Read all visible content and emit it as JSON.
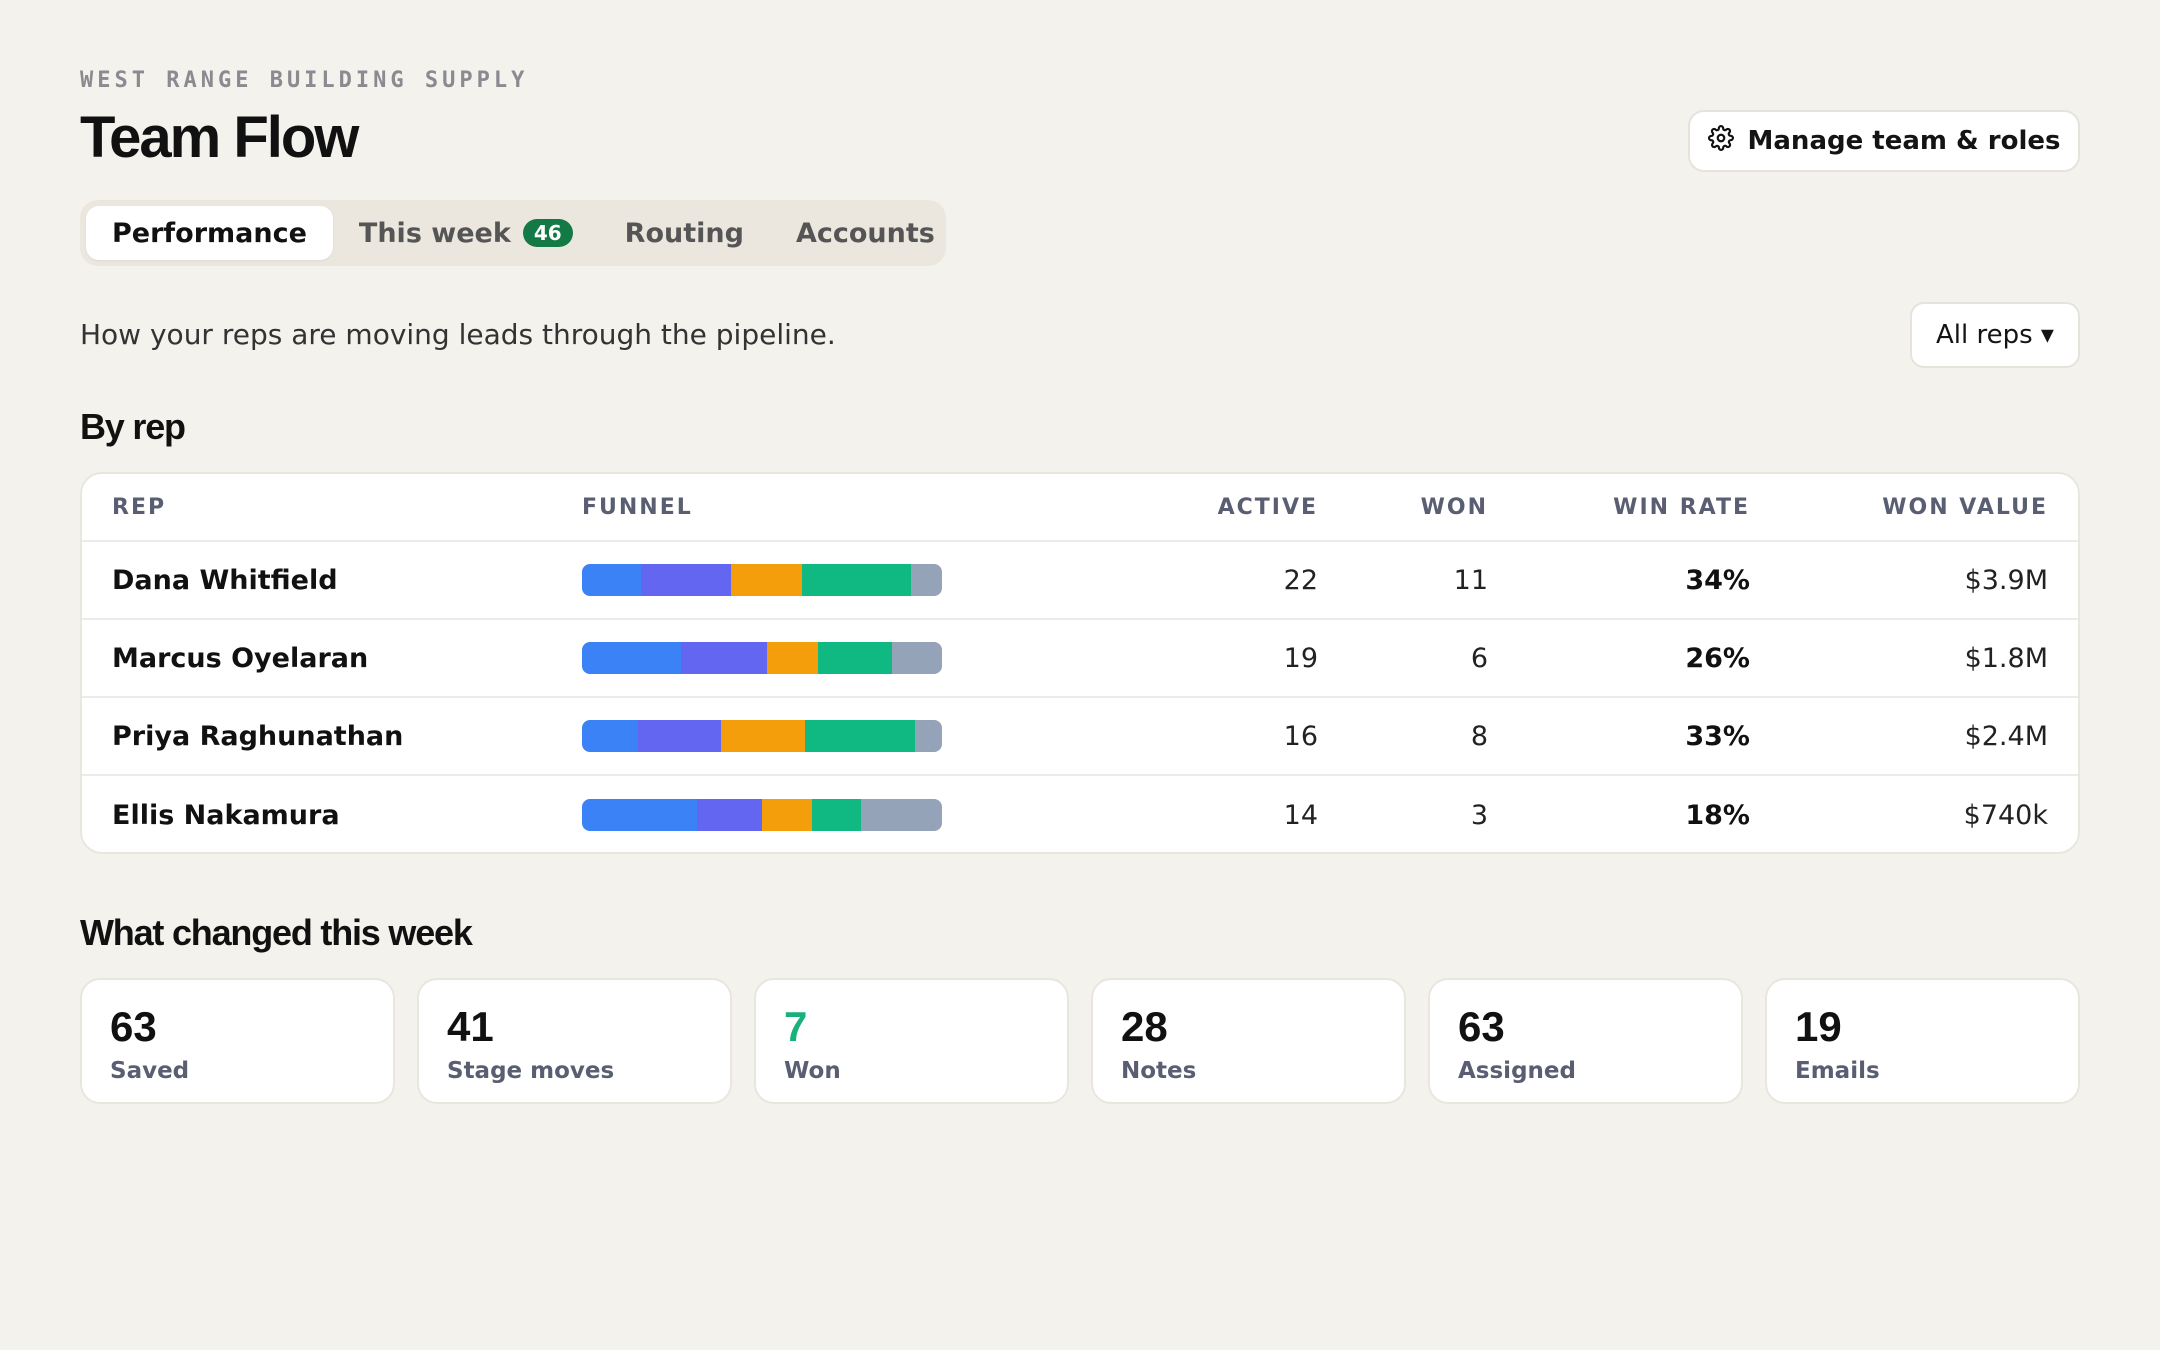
{
  "header": {
    "org_name": "WEST RANGE BUILDING SUPPLY",
    "title": "Team Flow",
    "manage_button": "Manage team & roles"
  },
  "tabs": [
    {
      "label": "Performance",
      "active": true
    },
    {
      "label": "This week",
      "badge": "46"
    },
    {
      "label": "Routing"
    },
    {
      "label": "Accounts"
    }
  ],
  "subtitle": "How your reps are moving leads through the pipeline.",
  "filter": {
    "selected": "All reps ▾"
  },
  "by_rep": {
    "heading": "By rep",
    "columns": {
      "rep": "REP",
      "funnel": "FUNNEL",
      "active": "ACTIVE",
      "won": "WON",
      "win_rate": "WIN RATE",
      "won_value": "WON VALUE"
    },
    "funnel_colors": [
      "#3b82f6",
      "#6366f1",
      "#f59e0b",
      "#10b981",
      "#94a3b8"
    ],
    "rows": [
      {
        "rep": "Dana Whitfield",
        "funnel": [
          0.165,
          0.25,
          0.195,
          0.305,
          0.085
        ],
        "active": "22",
        "won": "11",
        "win_rate": "34%",
        "won_value": "$3.9M"
      },
      {
        "rep": "Marcus Oyelaran",
        "funnel": [
          0.275,
          0.24,
          0.14,
          0.205,
          0.14
        ],
        "active": "19",
        "won": "6",
        "win_rate": "26%",
        "won_value": "$1.8M"
      },
      {
        "rep": "Priya Raghunathan",
        "funnel": [
          0.155,
          0.23,
          0.235,
          0.305,
          0.075
        ],
        "active": "16",
        "won": "8",
        "win_rate": "33%",
        "won_value": "$2.4M"
      },
      {
        "rep": "Ellis Nakamura",
        "funnel": [
          0.32,
          0.18,
          0.14,
          0.135,
          0.225
        ],
        "active": "14",
        "won": "3",
        "win_rate": "18%",
        "won_value": "$740k"
      }
    ]
  },
  "changes": {
    "heading": "What changed this week",
    "stats": [
      {
        "value": "63",
        "label": "Saved"
      },
      {
        "value": "41",
        "label": "Stage moves"
      },
      {
        "value": "7",
        "label": "Won",
        "highlight": "#1ab07a"
      },
      {
        "value": "28",
        "label": "Notes"
      },
      {
        "value": "63",
        "label": "Assigned"
      },
      {
        "value": "19",
        "label": "Emails"
      }
    ]
  }
}
